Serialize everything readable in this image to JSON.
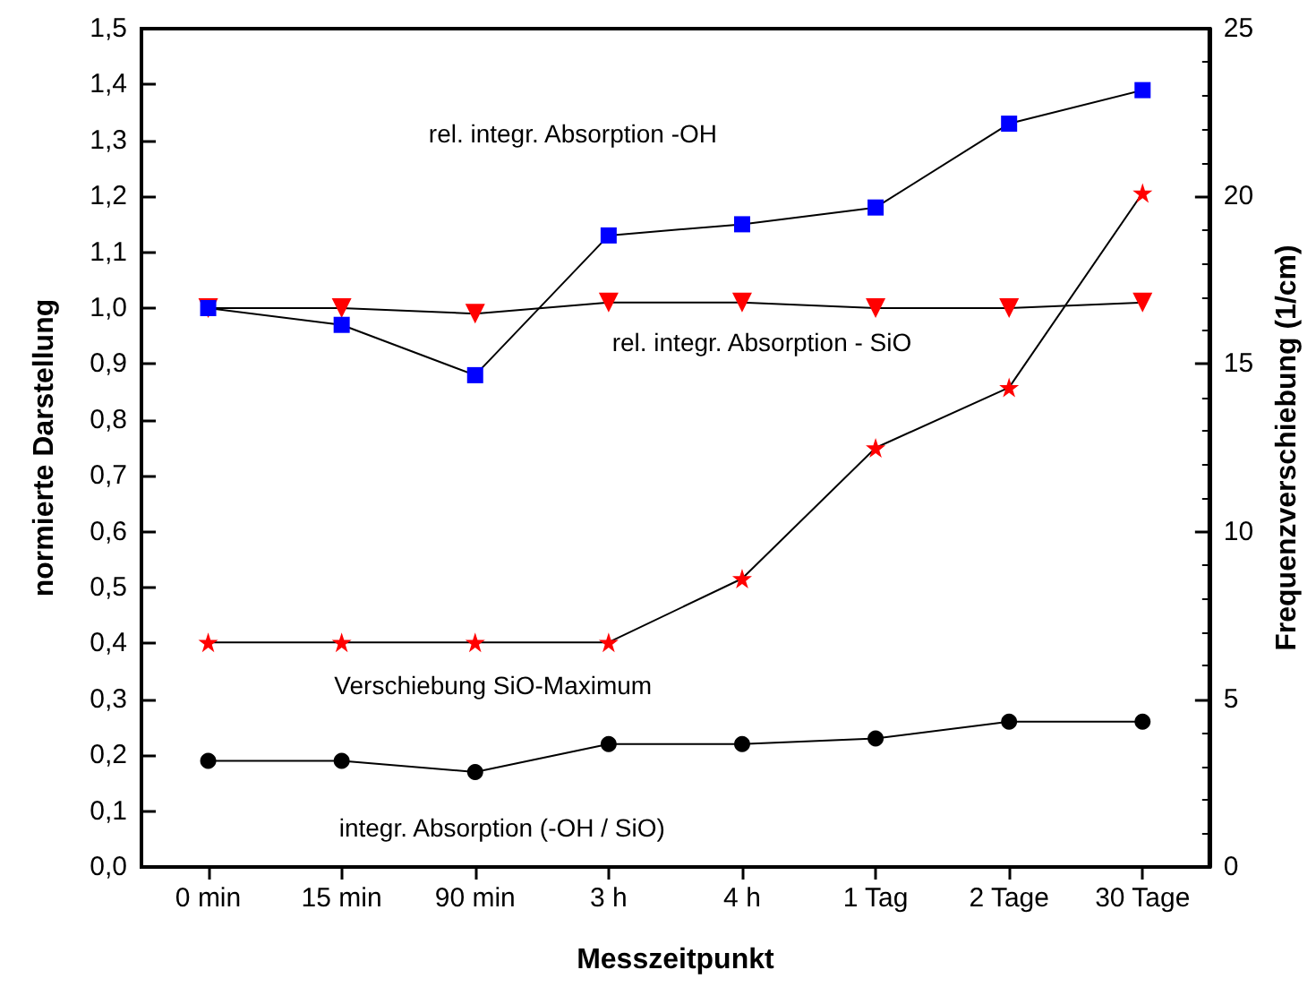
{
  "chart_data": {
    "type": "line",
    "xlabel": "Messzeitpunkt",
    "ylabel": "normierte Darstellung",
    "y2label": "Frequenzverschiebung (1/cm)",
    "categories": [
      "0 min",
      "15 min",
      "90 min",
      "3 h",
      "4 h",
      "1 Tag",
      "2 Tage",
      "30 Tage"
    ],
    "series": [
      {
        "name": "rel. integr. Absorption -OH",
        "color": "#0000ff",
        "marker": "square",
        "values": [
          1.0,
          0.97,
          0.88,
          1.13,
          1.15,
          1.18,
          1.33,
          1.39
        ]
      },
      {
        "name": "rel. integr. Absorption - SiO",
        "color": "#ff0000",
        "marker": "triangle",
        "values": [
          1.0,
          1.0,
          0.99,
          1.01,
          1.01,
          1.0,
          1.0,
          1.01
        ]
      },
      {
        "name": "Verschiebung SiO-Maximum",
        "color": "#ff0000",
        "marker": "star",
        "axis": "y2",
        "values": [
          6.7,
          6.7,
          6.7,
          6.7,
          8.6,
          12.5,
          14.3,
          20.1
        ]
      },
      {
        "name": "integr. Absorption (-OH / SiO)",
        "color": "#000000",
        "marker": "circle",
        "values": [
          0.19,
          0.19,
          0.17,
          0.22,
          0.22,
          0.23,
          0.26,
          0.26
        ]
      }
    ],
    "ylim": [
      0,
      1.5
    ],
    "yticks": [
      {
        "value": 0,
        "label": "0,0"
      },
      {
        "value": 0.1,
        "label": "0,1"
      },
      {
        "value": 0.2,
        "label": "0,2"
      },
      {
        "value": 0.3,
        "label": "0,3"
      },
      {
        "value": 0.4,
        "label": "0,4"
      },
      {
        "value": 0.5,
        "label": "0,5"
      },
      {
        "value": 0.6,
        "label": "0,6"
      },
      {
        "value": 0.7,
        "label": "0,7"
      },
      {
        "value": 0.8,
        "label": "0,8"
      },
      {
        "value": 0.9,
        "label": "0,9"
      },
      {
        "value": 1.0,
        "label": "1,0"
      },
      {
        "value": 1.1,
        "label": "1,1"
      },
      {
        "value": 1.2,
        "label": "1,2"
      },
      {
        "value": 1.3,
        "label": "1,3"
      },
      {
        "value": 1.4,
        "label": "1,4"
      },
      {
        "value": 1.5,
        "label": "1,5"
      }
    ],
    "y2lim": [
      0,
      25
    ],
    "y2ticks": [
      0,
      5,
      10,
      15,
      20,
      25
    ],
    "grid": false,
    "legend": false,
    "line_style": "solid"
  }
}
